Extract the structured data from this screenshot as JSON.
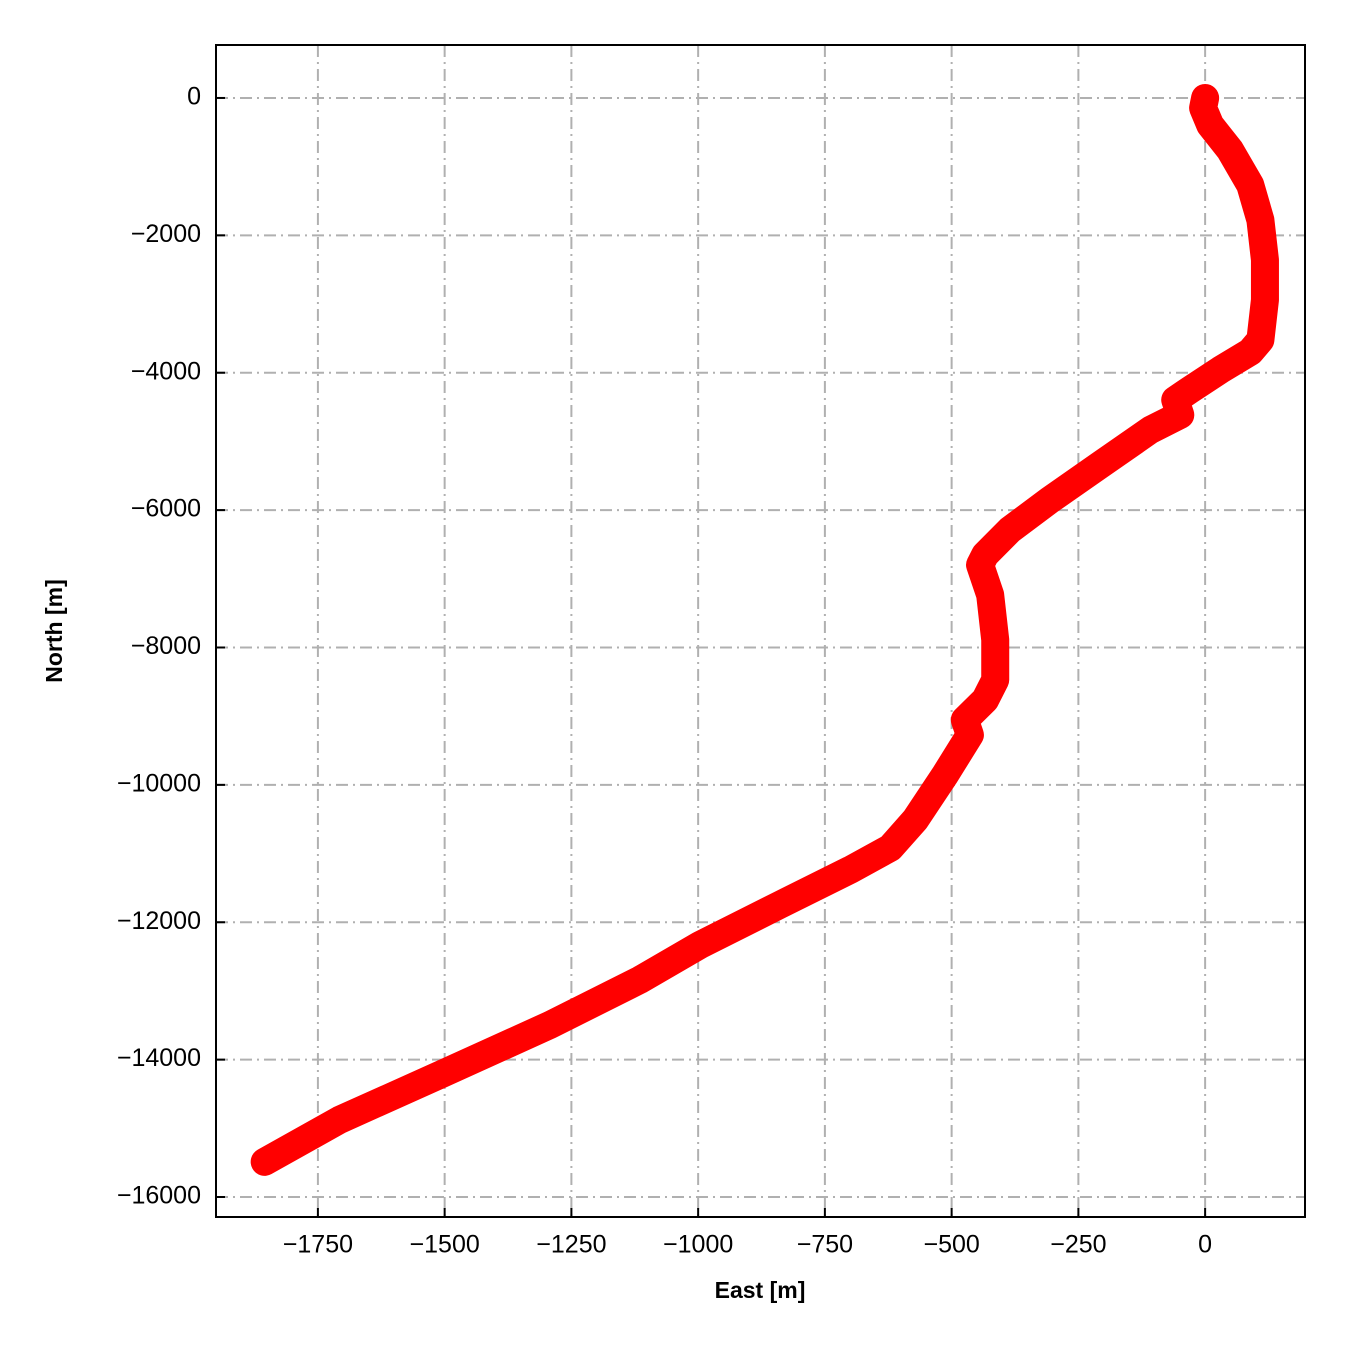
{
  "chart_data": {
    "type": "line",
    "xlabel": "East [m]",
    "ylabel": "North [m]",
    "x": [
      0,
      -4,
      10,
      49,
      89,
      109,
      118,
      118,
      109,
      89,
      30,
      -30,
      -59,
      -49,
      -108,
      -207,
      -306,
      -385,
      -434,
      -444,
      -424,
      -414,
      -414,
      -434,
      -474,
      -464,
      -513,
      -572,
      -621,
      -700,
      -839,
      -996,
      -1115,
      -1292,
      -1509,
      -1707,
      -1855
    ],
    "series": [
      {
        "color": "#ff0000",
        "values": [
          0,
          -146,
          -393,
          -757,
          -1266,
          -1776,
          -2358,
          -2940,
          -3523,
          -3697,
          -3959,
          -4250,
          -4396,
          -4614,
          -4833,
          -5342,
          -5852,
          -6288,
          -6652,
          -6798,
          -7234,
          -7889,
          -8472,
          -8763,
          -9054,
          -9272,
          -9855,
          -10509,
          -10917,
          -11237,
          -11747,
          -12329,
          -12839,
          -13494,
          -14221,
          -14876,
          -15488
        ]
      }
    ],
    "xlim": [
      -1951,
      197
    ],
    "ylim": [
      -16291,
      771
    ],
    "xticks": [
      {
        "value": -1750,
        "label": "−1750"
      },
      {
        "value": -1500,
        "label": "−1500"
      },
      {
        "value": -1250,
        "label": "−1250"
      },
      {
        "value": -1000,
        "label": "−1000"
      },
      {
        "value": -750,
        "label": "−750"
      },
      {
        "value": -500,
        "label": "−500"
      },
      {
        "value": -250,
        "label": "−250"
      },
      0
    ],
    "yticks": [
      0,
      {
        "value": -2000,
        "label": "−2000"
      },
      {
        "value": -4000,
        "label": "−4000"
      },
      {
        "value": -6000,
        "label": "−6000"
      },
      {
        "value": -8000,
        "label": "−8000"
      },
      {
        "value": -10000,
        "label": "−10000"
      },
      {
        "value": -12000,
        "label": "−12000"
      },
      {
        "value": -14000,
        "label": "−14000"
      },
      {
        "value": -16000,
        "label": "−16000"
      }
    ],
    "grid": true
  }
}
